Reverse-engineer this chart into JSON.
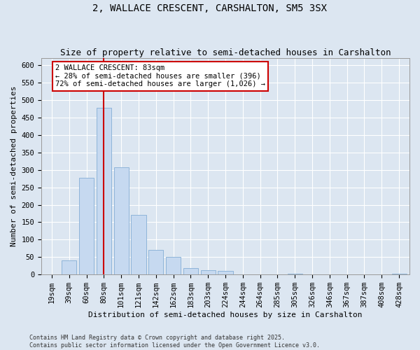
{
  "title": "2, WALLACE CRESCENT, CARSHALTON, SM5 3SX",
  "subtitle": "Size of property relative to semi-detached houses in Carshalton",
  "xlabel": "Distribution of semi-detached houses by size in Carshalton",
  "ylabel": "Number of semi-detached properties",
  "property_size": 83,
  "property_label": "2 WALLACE CRESCENT: 83sqm",
  "pct_smaller": 28,
  "pct_larger": 72,
  "count_smaller": 396,
  "count_larger": 1026,
  "bin_labels": [
    "19sqm",
    "39sqm",
    "60sqm",
    "80sqm",
    "101sqm",
    "121sqm",
    "142sqm",
    "162sqm",
    "183sqm",
    "203sqm",
    "224sqm",
    "244sqm",
    "264sqm",
    "285sqm",
    "305sqm",
    "326sqm",
    "346sqm",
    "367sqm",
    "387sqm",
    "408sqm",
    "428sqm"
  ],
  "bar_values": [
    0,
    40,
    278,
    478,
    308,
    170,
    70,
    50,
    18,
    12,
    10,
    0,
    0,
    0,
    3,
    0,
    0,
    0,
    0,
    0,
    2
  ],
  "bar_color": "#c6d9f0",
  "bar_edge_color": "#8eb4d9",
  "vline_x_index": 3,
  "vline_color": "#cc0000",
  "ylim": [
    0,
    620
  ],
  "yticks": [
    0,
    50,
    100,
    150,
    200,
    250,
    300,
    350,
    400,
    450,
    500,
    550,
    600
  ],
  "annotation_box_color": "#cc0000",
  "background_color": "#dce6f1",
  "plot_bg_color": "#dce6f1",
  "footer": "Contains HM Land Registry data © Crown copyright and database right 2025.\nContains public sector information licensed under the Open Government Licence v3.0.",
  "title_fontsize": 10,
  "subtitle_fontsize": 9,
  "axis_label_fontsize": 8,
  "tick_fontsize": 7.5,
  "annotation_fontsize": 7.5,
  "footer_fontsize": 6
}
